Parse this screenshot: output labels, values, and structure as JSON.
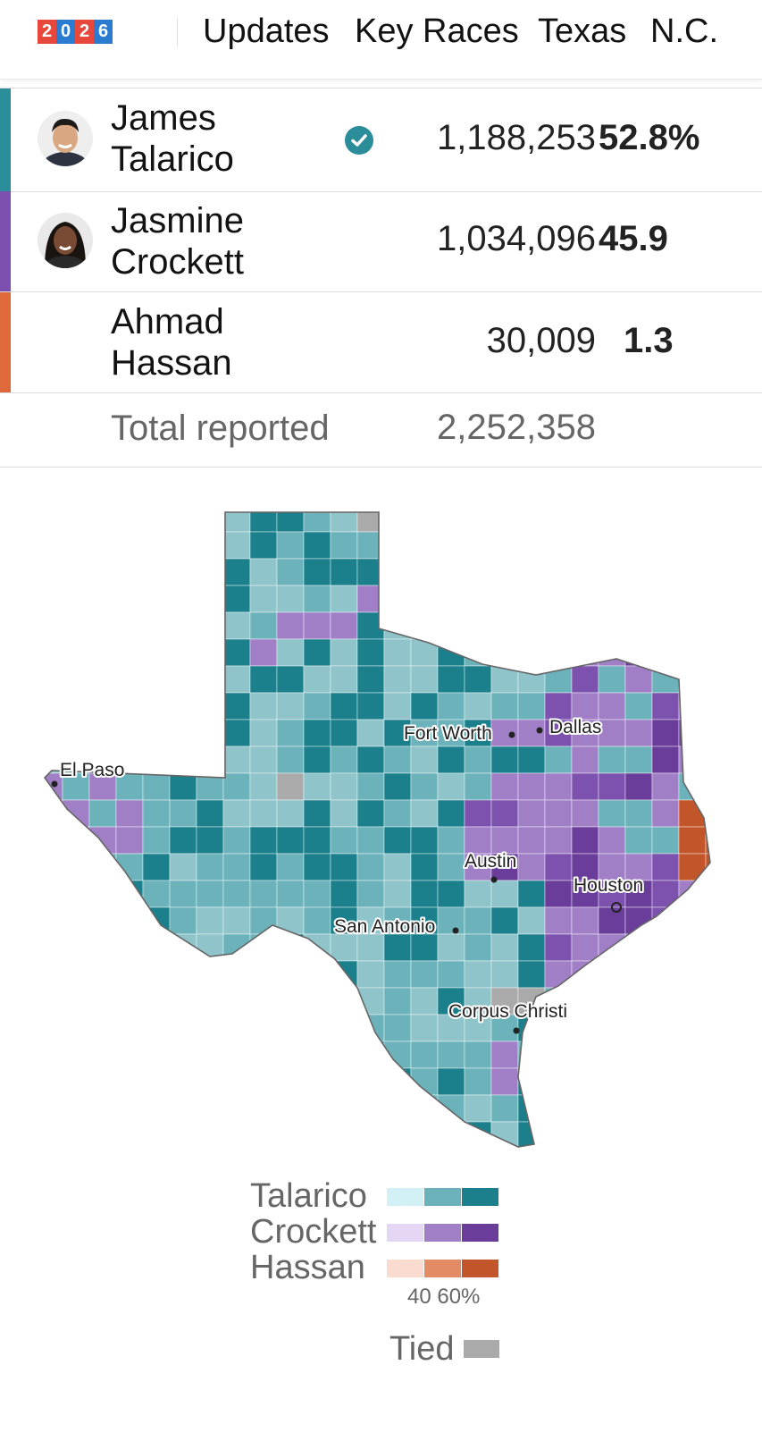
{
  "nav": {
    "logo_digits": [
      "2",
      "0",
      "2",
      "6"
    ],
    "logo_colors": [
      "#e8473c",
      "#2b7bd0",
      "#e8473c",
      "#2b7bd0"
    ],
    "links": [
      "Updates",
      "Key Races",
      "Texas",
      "N.C."
    ]
  },
  "results": {
    "candidates": [
      {
        "name_line1": "James",
        "name_line2": "Talarico",
        "votes": "1,188,253",
        "pct": "52.8%",
        "color": "#2b8f9b",
        "winner": true,
        "photo": "avatar-photo"
      },
      {
        "name_line1": "Jasmine",
        "name_line2": "Crockett",
        "votes": "1,034,096",
        "pct": "45.9",
        "color": "#7c4fb0",
        "winner": false,
        "photo": "avatar-photo"
      },
      {
        "name_line1": "Ahmad",
        "name_line2": "Hassan",
        "votes": "30,009",
        "pct": "1.3",
        "color": "#e0693c",
        "winner": false,
        "photo": null
      }
    ],
    "total_label": "Total reported",
    "total_votes": "2,252,358"
  },
  "map": {
    "cities": [
      "Fort Worth",
      "Dallas",
      "El Paso",
      "Austin",
      "Houston",
      "San Antonio",
      "Corpus Christi"
    ]
  },
  "legend": {
    "rows": [
      {
        "name": "Talarico",
        "colors": [
          "#d2f1f7",
          "#6cb2ba",
          "#1b7f8c"
        ]
      },
      {
        "name": "Crockett",
        "colors": [
          "#e6d6f6",
          "#a07fc7",
          "#6a3d9a"
        ]
      },
      {
        "name": "Hassan",
        "colors": [
          "#fadbd0",
          "#e28b65",
          "#c2552a"
        ]
      }
    ],
    "scale_label": "40 60%",
    "tied_label": "Tied",
    "tied_color": "#aaaaaa"
  }
}
